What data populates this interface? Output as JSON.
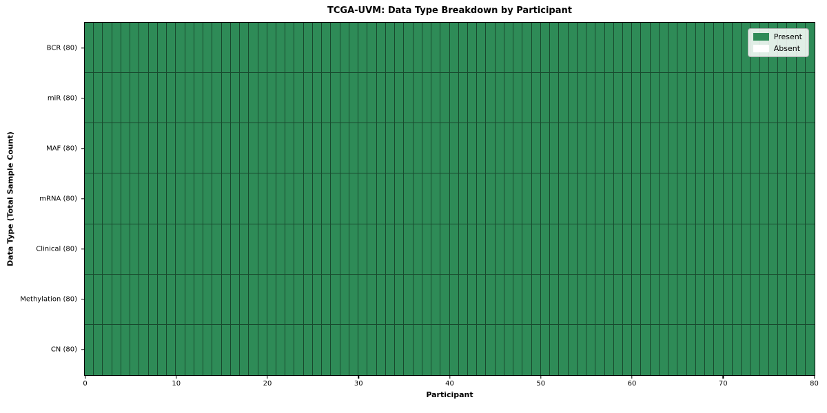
{
  "chart_data": {
    "type": "heatmap",
    "title": "TCGA-UVM: Data Type Breakdown by Participant",
    "xlabel": "Participant",
    "ylabel": "Data Type (Total Sample Count)",
    "xlim": [
      0,
      80
    ],
    "x_ticks": [
      0,
      10,
      20,
      30,
      40,
      50,
      60,
      70,
      80
    ],
    "n_participants": 80,
    "rows": [
      {
        "label": "BCR (80)",
        "data_type": "BCR",
        "total_sample_count": 80,
        "present_count": 80
      },
      {
        "label": "miR (80)",
        "data_type": "miR",
        "total_sample_count": 80,
        "present_count": 80
      },
      {
        "label": "MAF (80)",
        "data_type": "MAF",
        "total_sample_count": 80,
        "present_count": 80
      },
      {
        "label": "mRNA (80)",
        "data_type": "mRNA",
        "total_sample_count": 80,
        "present_count": 80
      },
      {
        "label": "Clinical (80)",
        "data_type": "Clinical",
        "total_sample_count": 80,
        "present_count": 80
      },
      {
        "label": "Methylation (80)",
        "data_type": "Methylation",
        "total_sample_count": 80,
        "present_count": 80
      },
      {
        "label": "CN (80)",
        "data_type": "CN",
        "total_sample_count": 80,
        "present_count": 80
      }
    ],
    "legend": {
      "position": "upper right",
      "entries": [
        {
          "label": "Present",
          "color": "#2e8b57"
        },
        {
          "label": "Absent",
          "color": "#ffffff"
        }
      ]
    },
    "colors": {
      "present": "#2e8b57",
      "absent": "#ffffff",
      "cell_edge": "rgba(0,0,0,0.48)",
      "axis_spine": "#000000",
      "background": "#ffffff"
    }
  }
}
